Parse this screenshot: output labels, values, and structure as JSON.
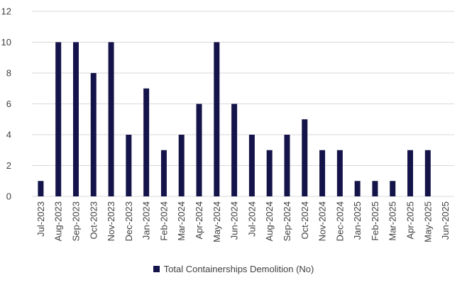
{
  "chart_data": {
    "type": "bar",
    "categories": [
      "Jul-2023",
      "Aug-2023",
      "Sep-2023",
      "Oct-2023",
      "Nov-2023",
      "Dec-2023",
      "Jan-2024",
      "Feb-2024",
      "Mar-2024",
      "Apr-2024",
      "May-2024",
      "Jun-2024",
      "Jul-2024",
      "Aug-2024",
      "Sep-2024",
      "Oct-2024",
      "Nov-2024",
      "Dec-2024",
      "Jan-2025",
      "Feb-2025",
      "Mar-2025",
      "Apr-2025",
      "May-2025",
      "Jun-2025"
    ],
    "series": [
      {
        "name": "Total Containerships Demolition (No)",
        "values": [
          1,
          10,
          10,
          8,
          10,
          4,
          7,
          3,
          4,
          6,
          10,
          6,
          4,
          3,
          4,
          5,
          3,
          3,
          1,
          1,
          1,
          3,
          3,
          0
        ],
        "color": "#14144a"
      }
    ],
    "title": "",
    "xlabel": "",
    "ylabel": "",
    "ylim": [
      0,
      12
    ],
    "yticks": [
      "0",
      "2",
      "4",
      "6",
      "8",
      "10",
      "12"
    ],
    "grid": true,
    "legend_position": "bottom",
    "colors": {
      "grid": "#d9d9d9",
      "text": "#404040"
    }
  }
}
